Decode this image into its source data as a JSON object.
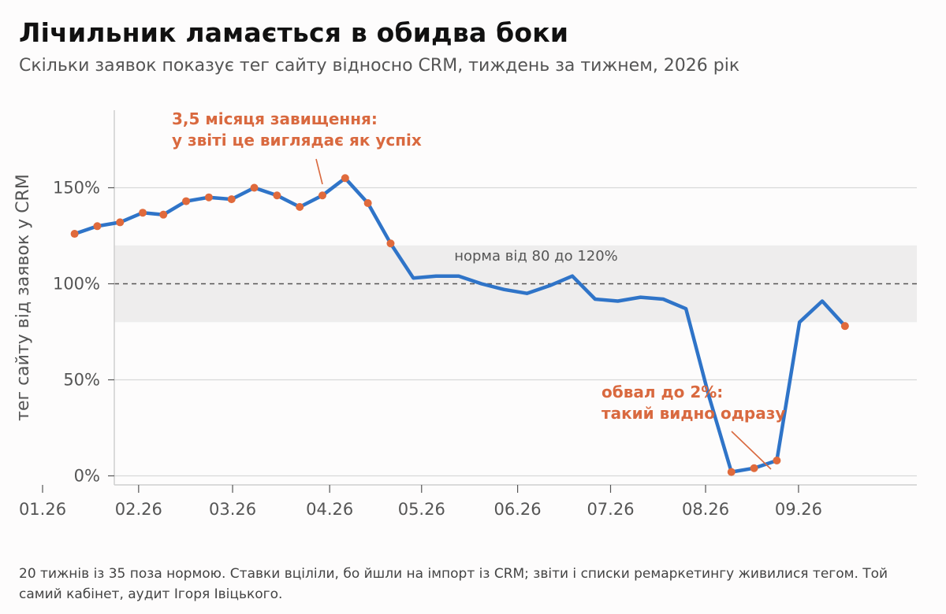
{
  "title": "Лічильник ламається в обидва боки",
  "subtitle": "Скільки заявок показує тег сайту відносно CRM, тиждень за тижнем, 2026 рік",
  "footnote": "20 тижнів із 35 поза нормою. Ставки вціліли, бо йшли на імпорт із CRM; звіти і списки ремаркетингу живилися тегом. Той самий кабінет, аудит Ігоря Івіцького.",
  "colors": {
    "line": "#2f74c8",
    "marker": "#e06a3c",
    "annotation": "#d9693f",
    "band": "#eeeded",
    "grid": "#d8d8d8",
    "reference": "#555555"
  },
  "chart_data": {
    "type": "line",
    "ylabel": "тег сайту від заявок у CRM",
    "xlabel": "",
    "ylim": [
      -4,
      190
    ],
    "y_ticks": [
      0,
      50,
      100,
      150
    ],
    "y_tick_labels": [
      "0%",
      "50%",
      "100%",
      "150%"
    ],
    "x_ticks": [
      1.65,
      6.3,
      10.85,
      15.55,
      20.0,
      24.65,
      29.15,
      33.75,
      38.25
    ],
    "x_tick_labels": [
      "01.26",
      "02.26",
      "03.26",
      "04.26",
      "05.26",
      "06.26",
      "07.26",
      "08.26",
      "09.26"
    ],
    "x_unit": "week",
    "xlim": [
      0.5,
      40.0
    ],
    "grid": "horizontal",
    "reference_line": 100,
    "normal_band": [
      80,
      120
    ],
    "band_label": "норма від 80 до 120%",
    "series": [
      {
        "values": [
          {
            "x": 3.2,
            "y": 126
          },
          {
            "x": 4.3,
            "y": 130
          },
          {
            "x": 5.4,
            "y": 132
          },
          {
            "x": 6.5,
            "y": 137
          },
          {
            "x": 7.5,
            "y": 136
          },
          {
            "x": 8.6,
            "y": 143
          },
          {
            "x": 9.7,
            "y": 145
          },
          {
            "x": 10.8,
            "y": 144
          },
          {
            "x": 11.9,
            "y": 150
          },
          {
            "x": 13.0,
            "y": 146
          },
          {
            "x": 14.1,
            "y": 140
          },
          {
            "x": 15.2,
            "y": 146
          },
          {
            "x": 16.3,
            "y": 155
          },
          {
            "x": 17.4,
            "y": 142
          },
          {
            "x": 18.5,
            "y": 121
          },
          {
            "x": 19.6,
            "y": 103
          },
          {
            "x": 20.7,
            "y": 104
          },
          {
            "x": 21.8,
            "y": 104
          },
          {
            "x": 22.9,
            "y": 100
          },
          {
            "x": 24.0,
            "y": 97
          },
          {
            "x": 25.1,
            "y": 95
          },
          {
            "x": 26.2,
            "y": 99
          },
          {
            "x": 27.3,
            "y": 104
          },
          {
            "x": 28.4,
            "y": 92
          },
          {
            "x": 29.5,
            "y": 91
          },
          {
            "x": 30.6,
            "y": 93
          },
          {
            "x": 31.7,
            "y": 92
          },
          {
            "x": 32.8,
            "y": 87
          },
          {
            "x": 33.9,
            "y": 42
          },
          {
            "x": 35.0,
            "y": 2
          },
          {
            "x": 36.1,
            "y": 4
          },
          {
            "x": 37.2,
            "y": 8
          },
          {
            "x": 38.3,
            "y": 80
          },
          {
            "x": 39.4,
            "y": 91
          },
          {
            "x": 40.5,
            "y": 78
          }
        ],
        "marked_points": [
          0,
          1,
          2,
          3,
          4,
          5,
          6,
          7,
          8,
          9,
          10,
          11,
          12,
          13,
          14,
          29,
          30,
          31,
          34
        ]
      }
    ],
    "annotations": [
      {
        "lines": [
          "3,5 місяця завищення:",
          "у звіті це виглядає як успіх"
        ],
        "target_index": 8
      },
      {
        "lines": [
          "обвал до 2%:",
          "такий видно одразу"
        ],
        "target_index": 29
      }
    ]
  }
}
